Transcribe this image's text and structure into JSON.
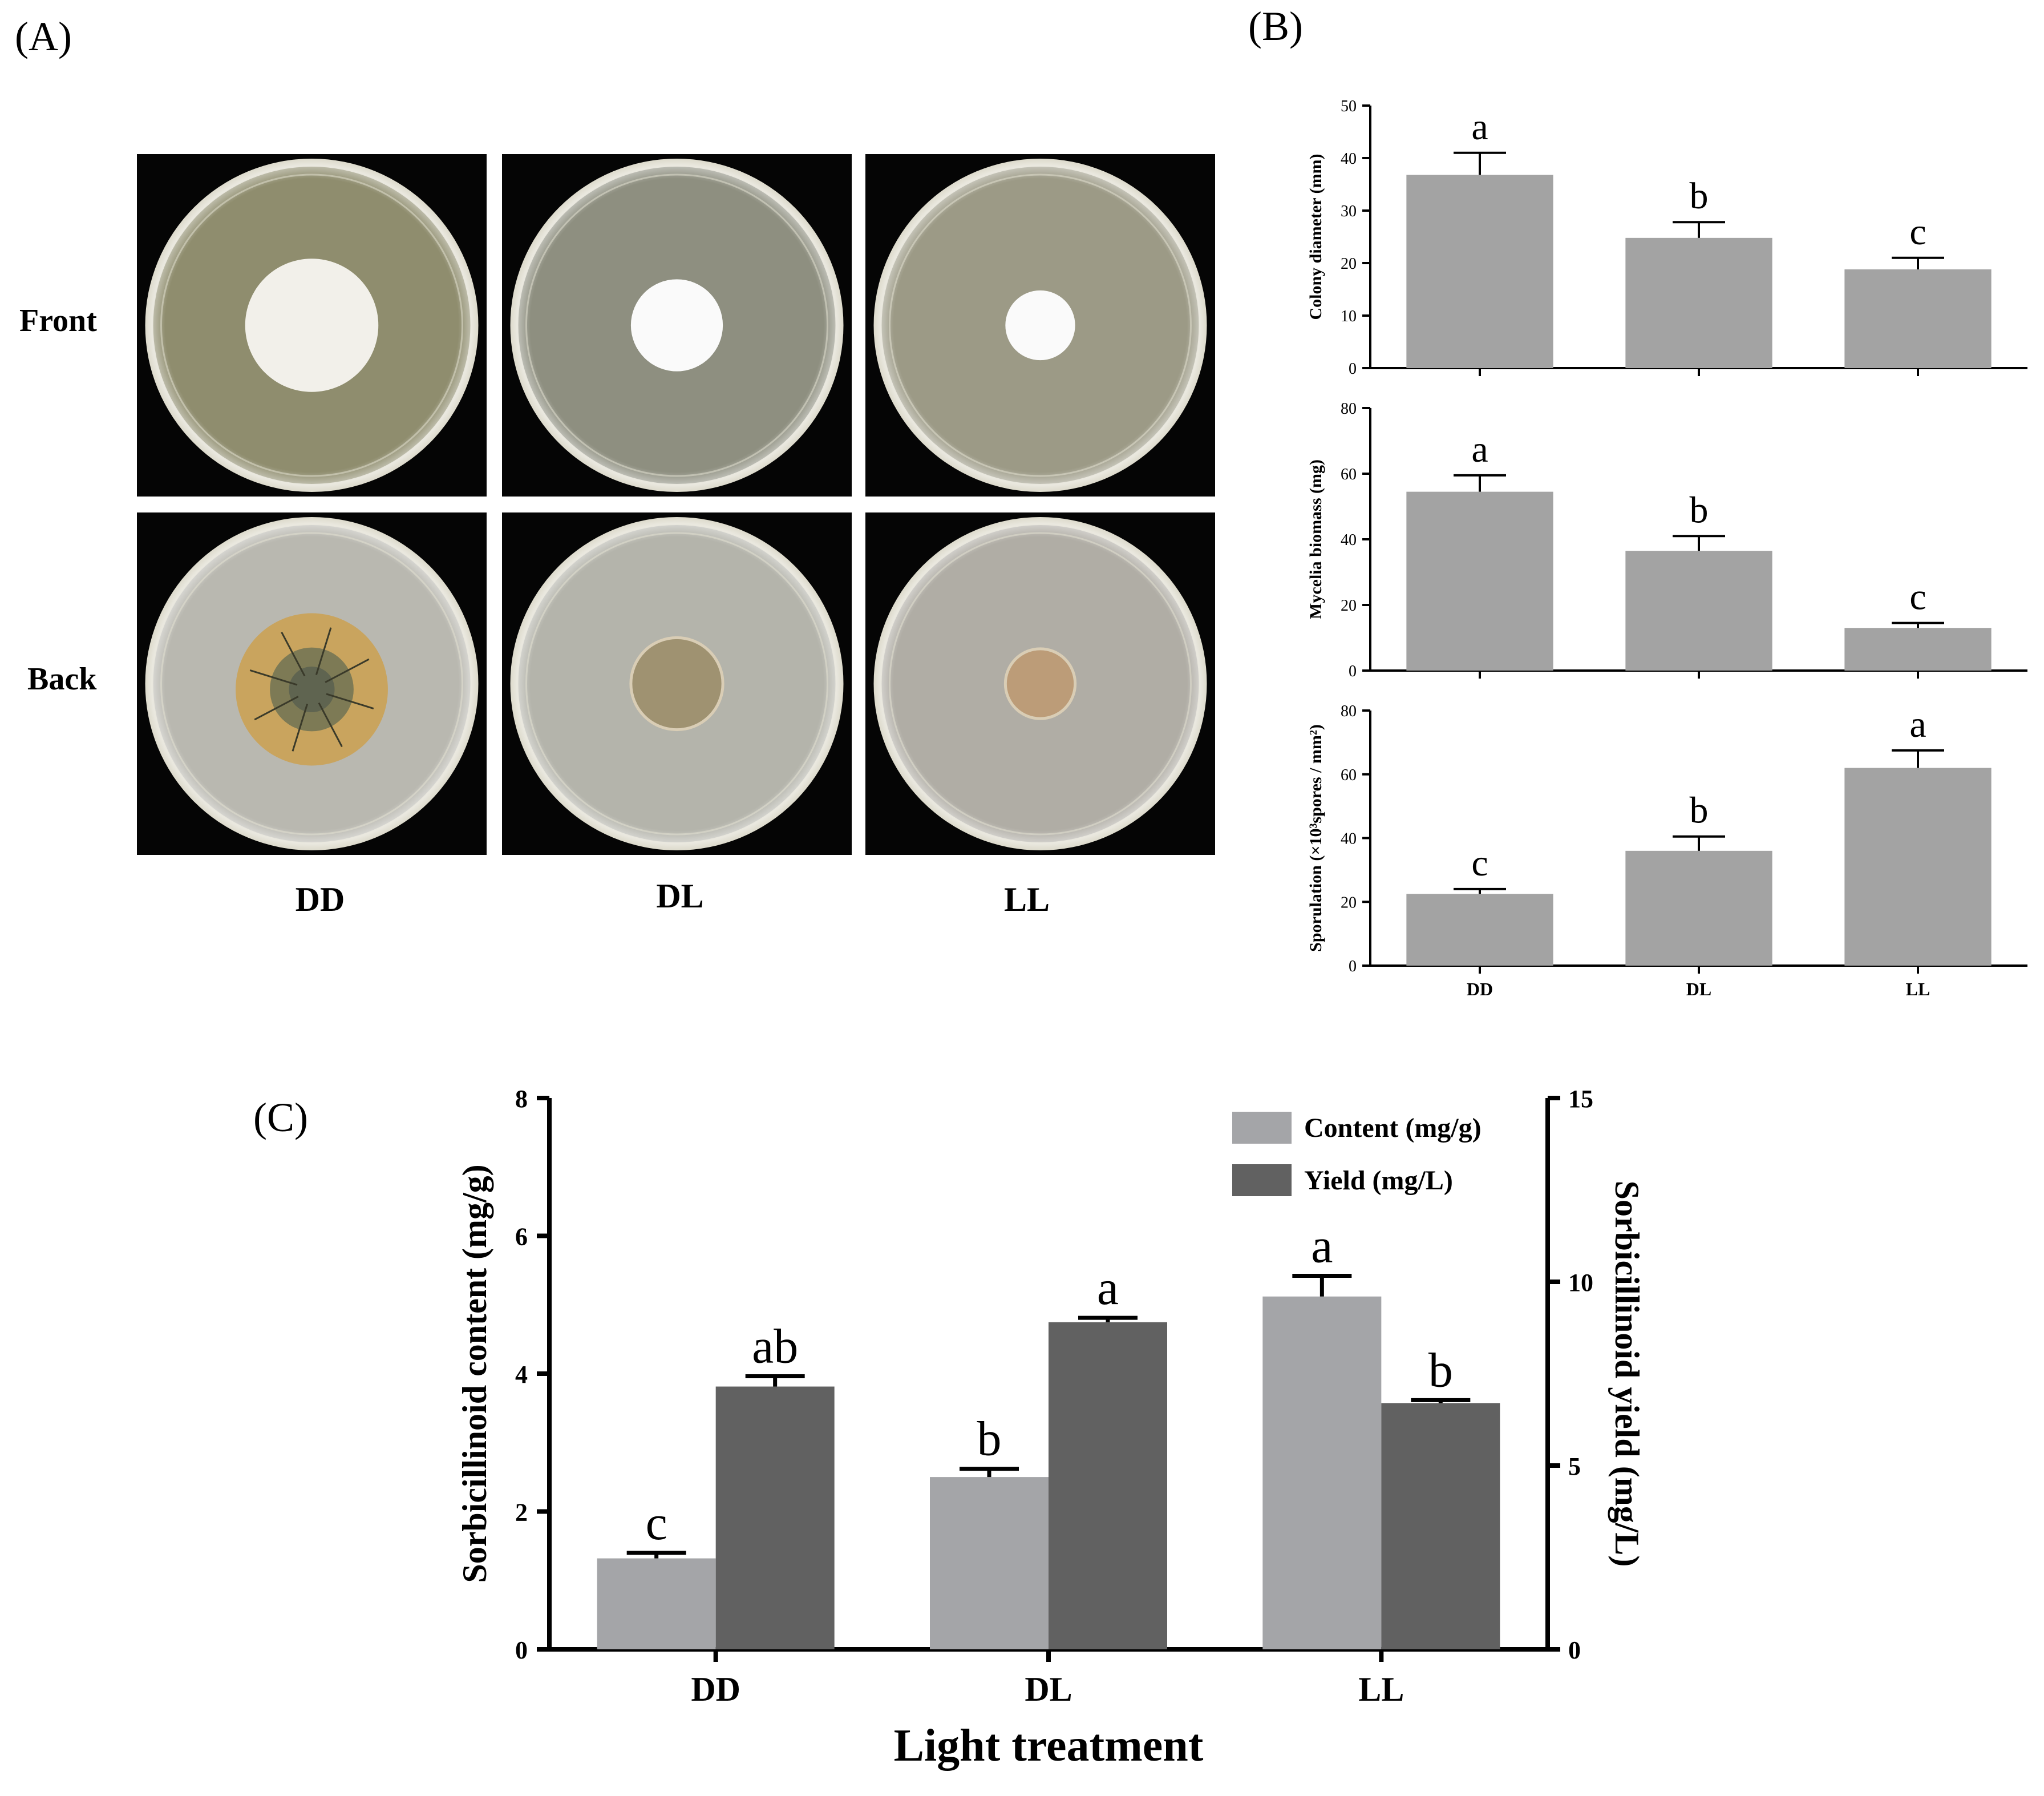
{
  "figure": {
    "panel_a_label": "(A)",
    "panel_b_label": "(B)",
    "panel_c_label": "(C)",
    "panel_a": {
      "rows": [
        "Front",
        "Back"
      ],
      "columns": [
        "DD",
        "DL",
        "LL"
      ],
      "plates": [
        {
          "row": "Front",
          "col": "DD",
          "colony_rel_radius": 0.42,
          "medium_color": "#8f8d6e",
          "colony_color": "#f2f0ea",
          "ring": false
        },
        {
          "row": "Front",
          "col": "DL",
          "colony_rel_radius": 0.29,
          "medium_color": "#8e8f80",
          "colony_color": "#fafafa",
          "ring": false
        },
        {
          "row": "Front",
          "col": "LL",
          "colony_rel_radius": 0.22,
          "medium_color": "#9c9a86",
          "colony_color": "#fafafa",
          "ring": false
        },
        {
          "row": "Back",
          "col": "DD",
          "colony_rel_radius": 0.48,
          "medium_color": "#b9b8b0",
          "colony_color": "#c9a45e",
          "ring": true
        },
        {
          "row": "Back",
          "col": "DL",
          "colony_rel_radius": 0.29,
          "medium_color": "#b4b4ab",
          "colony_color": "#9f9271",
          "ring": false
        },
        {
          "row": "Back",
          "col": "LL",
          "colony_rel_radius": 0.22,
          "medium_color": "#b0ada5",
          "colony_color": "#bc9c78",
          "ring": false
        }
      ]
    }
  },
  "chart_data": [
    {
      "id": "B1",
      "type": "bar",
      "categories": [
        "DD",
        "DL",
        "LL"
      ],
      "values": [
        36.8,
        24.8,
        18.8
      ],
      "errors": [
        4.2,
        3.0,
        2.2
      ],
      "letters": [
        "a",
        "b",
        "c"
      ],
      "ylabel": "Colony diameter (mm)",
      "ylim": [
        0,
        50
      ],
      "yticks": [
        0,
        10,
        20,
        30,
        40,
        50
      ],
      "show_xticklabels": false,
      "bar_color": "#a3a3a3"
    },
    {
      "id": "B2",
      "type": "bar",
      "categories": [
        "DD",
        "DL",
        "LL"
      ],
      "values": [
        54.5,
        36.5,
        13.0
      ],
      "errors": [
        5.0,
        4.5,
        1.5
      ],
      "letters": [
        "a",
        "b",
        "c"
      ],
      "ylabel": "Mycelia biomass (mg)",
      "ylim": [
        0,
        80
      ],
      "yticks": [
        0,
        20,
        40,
        60,
        80
      ],
      "show_xticklabels": false,
      "bar_color": "#a3a3a3"
    },
    {
      "id": "B3",
      "type": "bar",
      "categories": [
        "DD",
        "DL",
        "LL"
      ],
      "values": [
        22.5,
        36.0,
        62.0
      ],
      "errors": [
        1.5,
        4.5,
        5.5
      ],
      "letters": [
        "c",
        "b",
        "a"
      ],
      "ylabel": "Sporulation (×10³spores / mm²)",
      "ylim": [
        0,
        80
      ],
      "yticks": [
        0,
        20,
        40,
        60,
        80
      ],
      "show_xticklabels": true,
      "bar_color": "#a3a3a3"
    },
    {
      "id": "C",
      "type": "bar",
      "categories": [
        "DD",
        "DL",
        "LL"
      ],
      "xlabel": "Light treatment",
      "ylabel": "Sorbicillinoid content (mg/g)",
      "y2label": "Sorbicillinoid yield (mg/L)",
      "ylim": [
        0,
        8
      ],
      "yticks": [
        0,
        2,
        4,
        6,
        8
      ],
      "y2lim": [
        0,
        15
      ],
      "y2ticks": [
        0,
        5,
        10,
        15
      ],
      "series": [
        {
          "name": "Content (mg/g)",
          "axis": "left",
          "values": [
            1.32,
            2.5,
            5.12
          ],
          "errors": [
            0.08,
            0.12,
            0.3
          ],
          "letters": [
            "c",
            "b",
            "a"
          ],
          "color": "#a4a5a8"
        },
        {
          "name": "Yield (mg/L)",
          "axis": "right",
          "values": [
            7.15,
            8.9,
            6.7
          ],
          "errors": [
            0.28,
            0.12,
            0.08
          ],
          "letters": [
            "ab",
            "a",
            "b"
          ],
          "color": "#616161"
        }
      ]
    }
  ]
}
